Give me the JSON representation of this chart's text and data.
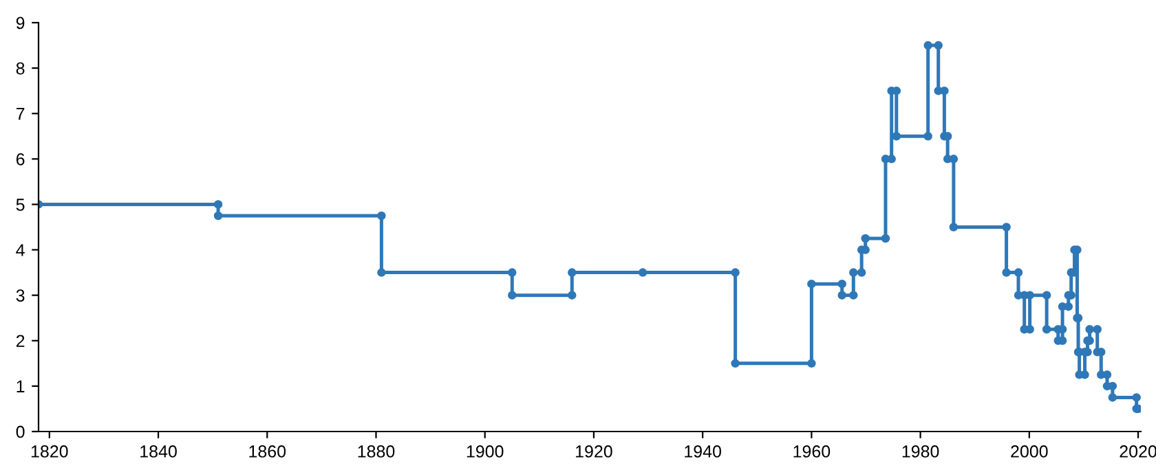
{
  "chart_data": {
    "type": "line",
    "marker": "circle",
    "line_style": "solid",
    "grid": false,
    "legend": false,
    "xlim": [
      1818,
      2020.5
    ],
    "ylim": [
      0,
      9
    ],
    "xticks": [
      1820,
      1840,
      1860,
      1880,
      1900,
      1920,
      1940,
      1960,
      1980,
      2000,
      2020
    ],
    "yticks": [
      0,
      1,
      2,
      3,
      4,
      5,
      6,
      7,
      8,
      9
    ],
    "series": [
      {
        "color": "#2f78b8",
        "x": [
          1818,
          1851,
          1851,
          1881,
          1881,
          1905,
          1905,
          1916,
          1916,
          1929,
          1946,
          1946,
          1960,
          1960,
          1965.6,
          1965.6,
          1967.7,
          1967.7,
          1969.2,
          1969.2,
          1969.9,
          1969.9,
          1973.6,
          1973.6,
          1974.7,
          1974.7,
          1975.6,
          1975.6,
          1981.4,
          1981.4,
          1983.3,
          1983.3,
          1984.4,
          1984.4,
          1985,
          1985,
          1986.1,
          1986.1,
          1995.8,
          1995.8,
          1998,
          1998,
          1999.1,
          1999.1,
          2000.1,
          2000.1,
          2003.2,
          2003.2,
          2005.3,
          2005.3,
          2006.1,
          2006.1,
          2006.1,
          2007.2,
          2007.2,
          2007.7,
          2007.7,
          2008.3,
          2008.3,
          2008.8,
          2008.8,
          2009,
          2009,
          2009.2,
          2009.2,
          2010.2,
          2010.2,
          2010.7,
          2010.7,
          2011.1,
          2011.1,
          2012.5,
          2012.5,
          2013.2,
          2013.2,
          2014.3,
          2014.3,
          2015.3,
          2015.3,
          2019.7,
          2019.7,
          2020
        ],
        "values": [
          5,
          5,
          4.75,
          4.75,
          3.5,
          3.5,
          3,
          3,
          3.5,
          3.5,
          3.5,
          1.5,
          1.5,
          3.25,
          3.25,
          3,
          3,
          3.5,
          3.5,
          4,
          4,
          4.25,
          4.25,
          6,
          6,
          7.5,
          7.5,
          6.5,
          6.5,
          8.5,
          8.5,
          7.5,
          7.5,
          6.5,
          6.5,
          6,
          6,
          4.5,
          4.5,
          3.5,
          3.5,
          3,
          3,
          2.25,
          2.25,
          3,
          3,
          2.25,
          2.25,
          2,
          2,
          2.25,
          2.75,
          2.75,
          3,
          3,
          3.5,
          3.5,
          4,
          4,
          2.5,
          2.5,
          1.75,
          1.75,
          1.25,
          1.25,
          1.75,
          1.75,
          2,
          2,
          2.25,
          2.25,
          1.75,
          1.75,
          1.25,
          1.25,
          1,
          1,
          0.75,
          0.75,
          0.5,
          0.5
        ]
      }
    ]
  }
}
